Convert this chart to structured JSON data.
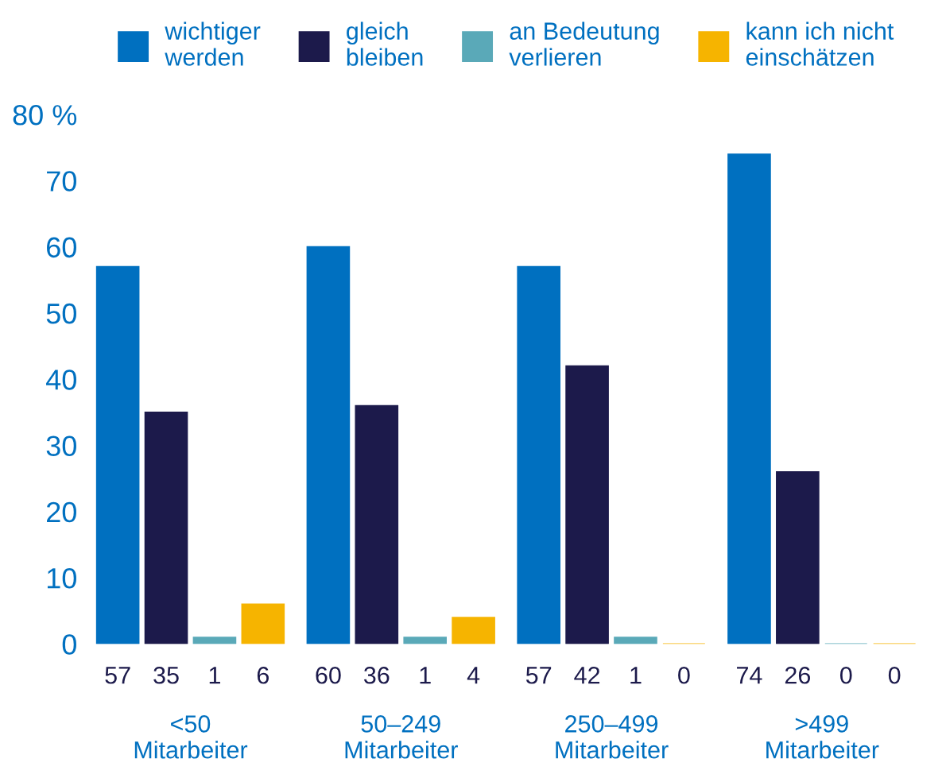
{
  "chart_data": {
    "type": "bar",
    "categories": [
      "<50\nMitarbeiter",
      "50–249\nMitarbeiter",
      "250–499\nMitarbeiter",
      ">499\nMitarbeiter"
    ],
    "series": [
      {
        "name": "wichtiger\nwerden",
        "color": "#0070c0",
        "values": [
          57,
          60,
          57,
          74
        ]
      },
      {
        "name": "gleich\nbleiben",
        "color": "#1c1a4b",
        "values": [
          35,
          36,
          42,
          26
        ]
      },
      {
        "name": "an Bedeutung\nverlieren",
        "color": "#5aa9b8",
        "values": [
          1,
          1,
          1,
          0
        ]
      },
      {
        "name": "kann ich nicht\neinschätzen",
        "color": "#f6b400",
        "values": [
          6,
          4,
          0,
          0
        ]
      }
    ],
    "ylim": [
      0,
      80
    ],
    "yticks": [
      0,
      10,
      20,
      30,
      40,
      50,
      60,
      70,
      {
        "value": 80,
        "label": "80 %"
      }
    ],
    "data_labels": true,
    "grid": false,
    "legend": "top"
  }
}
